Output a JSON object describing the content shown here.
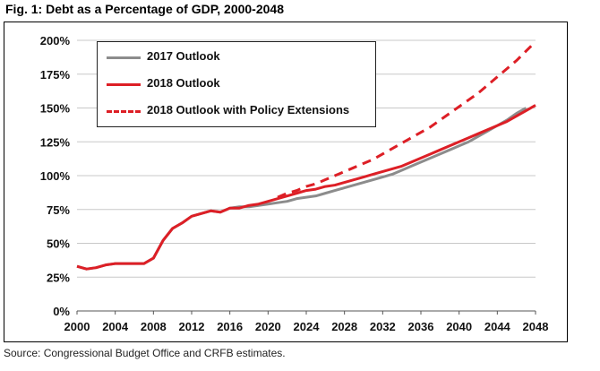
{
  "figure": {
    "title": "Fig. 1: Debt as a Percentage of GDP, 2000-2048",
    "source": "Source: Congressional Budget Office and CRFB estimates."
  },
  "chart_data": {
    "type": "line",
    "title": "Fig. 1: Debt as a Percentage of GDP, 2000-2048",
    "xlabel": "",
    "ylabel": "",
    "xlim": [
      2000,
      2048
    ],
    "ylim": [
      0,
      200
    ],
    "grid": "horizontal",
    "legend_position": "top-left",
    "x_ticks": [
      "2000",
      "2004",
      "2008",
      "2012",
      "2016",
      "2020",
      "2024",
      "2028",
      "2032",
      "2036",
      "2040",
      "2044",
      "2048"
    ],
    "y_ticks": [
      "0%",
      "25%",
      "50%",
      "75%",
      "100%",
      "125%",
      "150%",
      "175%",
      "200%"
    ],
    "series": [
      {
        "name": "2017 Outlook",
        "color": "#8c8c8c",
        "style": "solid",
        "x": [
          2000,
          2001,
          2002,
          2003,
          2004,
          2005,
          2006,
          2007,
          2008,
          2009,
          2010,
          2011,
          2012,
          2013,
          2014,
          2015,
          2016,
          2017,
          2018,
          2019,
          2020,
          2021,
          2022,
          2023,
          2024,
          2025,
          2026,
          2027,
          2028,
          2029,
          2030,
          2031,
          2032,
          2033,
          2034,
          2035,
          2036,
          2037,
          2038,
          2039,
          2040,
          2041,
          2042,
          2043,
          2044,
          2045,
          2046,
          2047
        ],
        "values": [
          33,
          31,
          32,
          34,
          35,
          35,
          35,
          35,
          39,
          52,
          61,
          65,
          70,
          72,
          74,
          73,
          76,
          77,
          77,
          78,
          79,
          80,
          81,
          83,
          84,
          85,
          87,
          89,
          91,
          93,
          95,
          97,
          99,
          101,
          104,
          107,
          110,
          113,
          116,
          119,
          122,
          125,
          129,
          133,
          137,
          141,
          146,
          150
        ]
      },
      {
        "name": "2018 Outlook",
        "color": "#dd1f26",
        "style": "solid",
        "x": [
          2000,
          2001,
          2002,
          2003,
          2004,
          2005,
          2006,
          2007,
          2008,
          2009,
          2010,
          2011,
          2012,
          2013,
          2014,
          2015,
          2016,
          2017,
          2018,
          2019,
          2020,
          2021,
          2022,
          2023,
          2024,
          2025,
          2026,
          2027,
          2028,
          2029,
          2030,
          2031,
          2032,
          2033,
          2034,
          2035,
          2036,
          2037,
          2038,
          2039,
          2040,
          2041,
          2042,
          2043,
          2044,
          2045,
          2046,
          2047,
          2048
        ],
        "values": [
          33,
          31,
          32,
          34,
          35,
          35,
          35,
          35,
          39,
          52,
          61,
          65,
          70,
          72,
          74,
          73,
          76,
          76,
          78,
          79,
          81,
          83,
          85,
          87,
          89,
          90,
          92,
          93,
          95,
          97,
          99,
          101,
          103,
          105,
          107,
          110,
          113,
          116,
          119,
          122,
          125,
          128,
          131,
          134,
          137,
          140,
          144,
          148,
          152
        ]
      },
      {
        "name": "2018 Outlook with Policy Extensions",
        "color": "#dd1f26",
        "style": "dashed",
        "x": [
          2021,
          2022,
          2023,
          2024,
          2025,
          2026,
          2027,
          2028,
          2029,
          2030,
          2031,
          2032,
          2033,
          2034,
          2035,
          2036,
          2037,
          2038,
          2039,
          2040,
          2041,
          2042,
          2043,
          2044,
          2045,
          2046,
          2047,
          2048
        ],
        "values": [
          84,
          87,
          89,
          92,
          94,
          97,
          100,
          103,
          106,
          109,
          112,
          116,
          120,
          124,
          128,
          132,
          136,
          141,
          146,
          151,
          156,
          161,
          167,
          173,
          179,
          185,
          192,
          199
        ]
      }
    ]
  }
}
